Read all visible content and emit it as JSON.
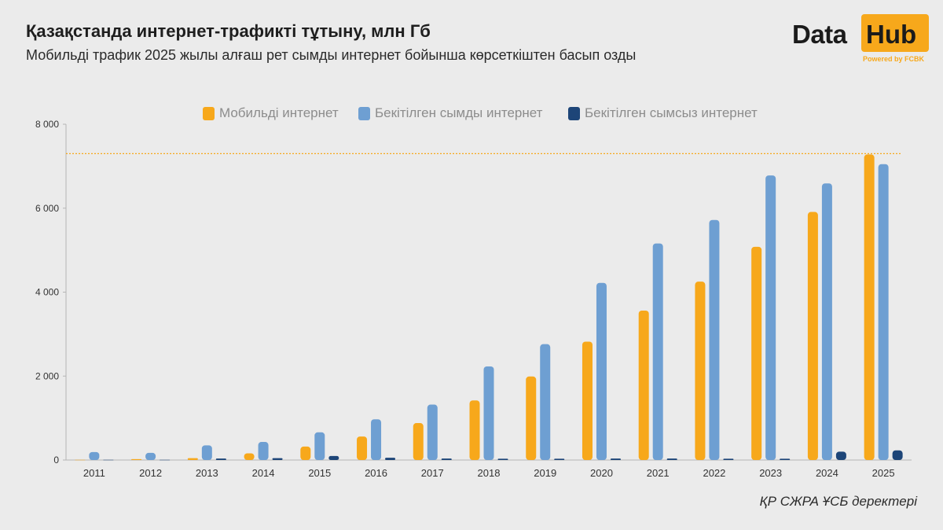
{
  "header": {
    "title": "Қазақстанда интернет-трафикті тұтыну, млн Гб",
    "subtitle": "Мобильді трафик 2025 жылы алғаш рет сымды интернет бойынша көрсеткіштен басып озды"
  },
  "logo": {
    "data_text": "Data",
    "hub_text": "Hub",
    "powered_text": "Powered by FCBK"
  },
  "source": "ҚР СЖРА ҰСБ деректері",
  "colors": {
    "mobile": "#f7a81b",
    "fixed_wired": "#6e9fd2",
    "fixed_wireless": "#1d4578",
    "reference_line": "#f7a81b",
    "axis_text": "#333333"
  },
  "chart_data": {
    "type": "bar",
    "title": "Қазақстанда интернет-трафикті тұтыну, млн Гб",
    "xlabel": "",
    "ylabel": "",
    "ylim": [
      0,
      8000
    ],
    "yticks": [
      0,
      2000,
      4000,
      6000,
      8000
    ],
    "ytick_labels": [
      "0",
      "2 000",
      "4 000",
      "6 000",
      "8 000"
    ],
    "grid": false,
    "legend_position": "top-center",
    "reference_line": 7300,
    "categories": [
      "2011",
      "2012",
      "2013",
      "2014",
      "2015",
      "2016",
      "2017",
      "2018",
      "2019",
      "2020",
      "2021",
      "2022",
      "2023",
      "2024",
      "2025"
    ],
    "series": [
      {
        "name": "Мобильді интернет",
        "color_key": "mobile",
        "values": [
          5,
          20,
          45,
          160,
          320,
          560,
          880,
          1420,
          1990,
          2820,
          3560,
          4250,
          5080,
          5910,
          7280
        ]
      },
      {
        "name": "Бекітілген сымды интернет",
        "color_key": "fixed_wired",
        "values": [
          190,
          170,
          350,
          430,
          660,
          970,
          1320,
          2230,
          2760,
          4220,
          5160,
          5720,
          6780,
          6590,
          7050
        ]
      },
      {
        "name": "Бекітілген сымсыз интернет",
        "color_key": "fixed_wireless",
        "values": [
          5,
          5,
          35,
          45,
          95,
          55,
          35,
          30,
          30,
          35,
          35,
          30,
          30,
          200,
          230
        ]
      }
    ]
  }
}
